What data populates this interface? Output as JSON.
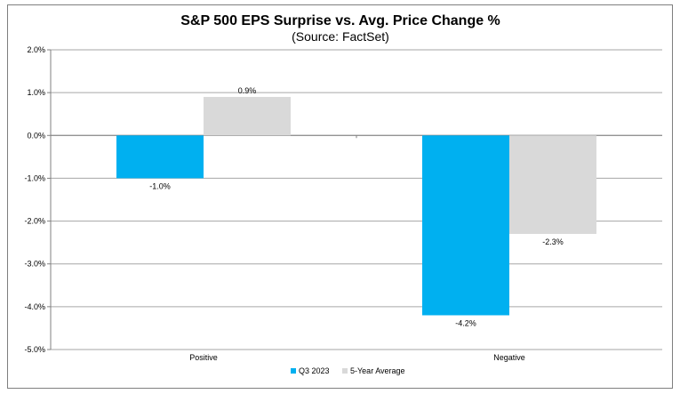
{
  "chart_data": {
    "type": "bar",
    "title": "S&P 500 EPS Surprise vs. Avg. Price Change %",
    "subtitle": "(Source: FactSet)",
    "categories": [
      "Positive",
      "Negative"
    ],
    "series": [
      {
        "name": "Q3 2023",
        "values": [
          -1.0,
          -4.2
        ],
        "labels": [
          "-1.0%",
          "-4.2%"
        ],
        "color": "#00b0f0"
      },
      {
        "name": "5-Year Average",
        "values": [
          0.9,
          -2.3
        ],
        "labels": [
          "0.9%",
          "-2.3%"
        ],
        "color": "#d9d9d9"
      }
    ],
    "ylim": [
      -5.0,
      2.0
    ],
    "yticks": [
      2.0,
      1.0,
      0.0,
      -1.0,
      -2.0,
      -3.0,
      -4.0,
      -5.0
    ],
    "ytick_labels": [
      "2.0%",
      "1.0%",
      "0.0%",
      "-1.0%",
      "-2.0%",
      "-3.0%",
      "-4.0%",
      "-5.0%"
    ],
    "grid": true,
    "legend": "bottom-center",
    "xlabel": "",
    "ylabel": ""
  }
}
